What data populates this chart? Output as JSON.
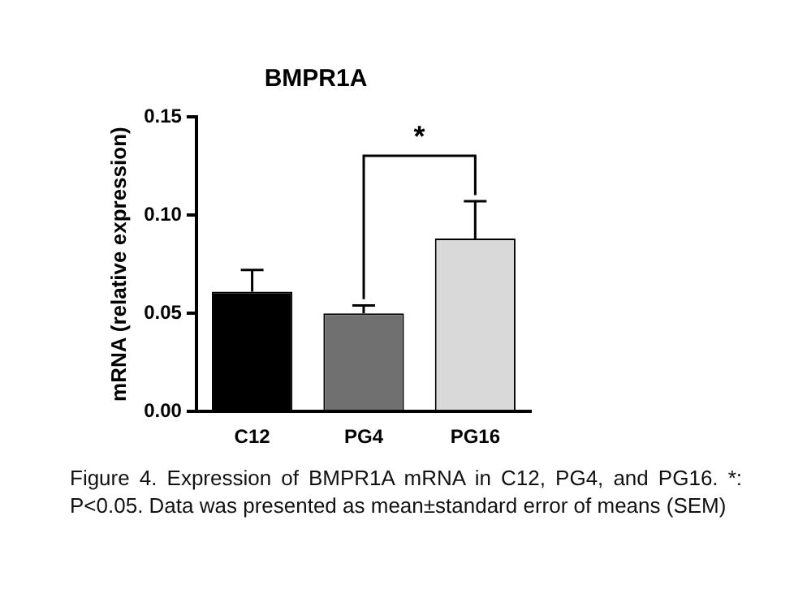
{
  "chart_data": {
    "type": "bar",
    "title": "BMPR1A",
    "ylabel": "mRNA (relative expression)",
    "categories": [
      "C12",
      "PG4",
      "PG16"
    ],
    "values": [
      0.061,
      0.05,
      0.088
    ],
    "colors": [
      "#000000",
      "#707070",
      "#d9d9d9"
    ],
    "errors": [
      [
        0.061,
        0.072
      ],
      [
        0.05,
        0.054
      ],
      [
        0.088,
        0.107
      ]
    ],
    "ylim": [
      0,
      0.15
    ],
    "yticks": [
      {
        "value": 0,
        "label": "0.00"
      },
      {
        "value": 0.05,
        "label": "0.05"
      },
      {
        "value": 0.1,
        "label": "0.10"
      },
      {
        "value": 0.15,
        "label": "0.15"
      }
    ],
    "grid": false,
    "legend": false,
    "annotations": [
      "*",
      "Figure 4. Expression of BMPR1A mRNA in C12, PG4, and PG16. *: P<0.05. Data was presented as mean±standard error of means (SEM)"
    ]
  }
}
